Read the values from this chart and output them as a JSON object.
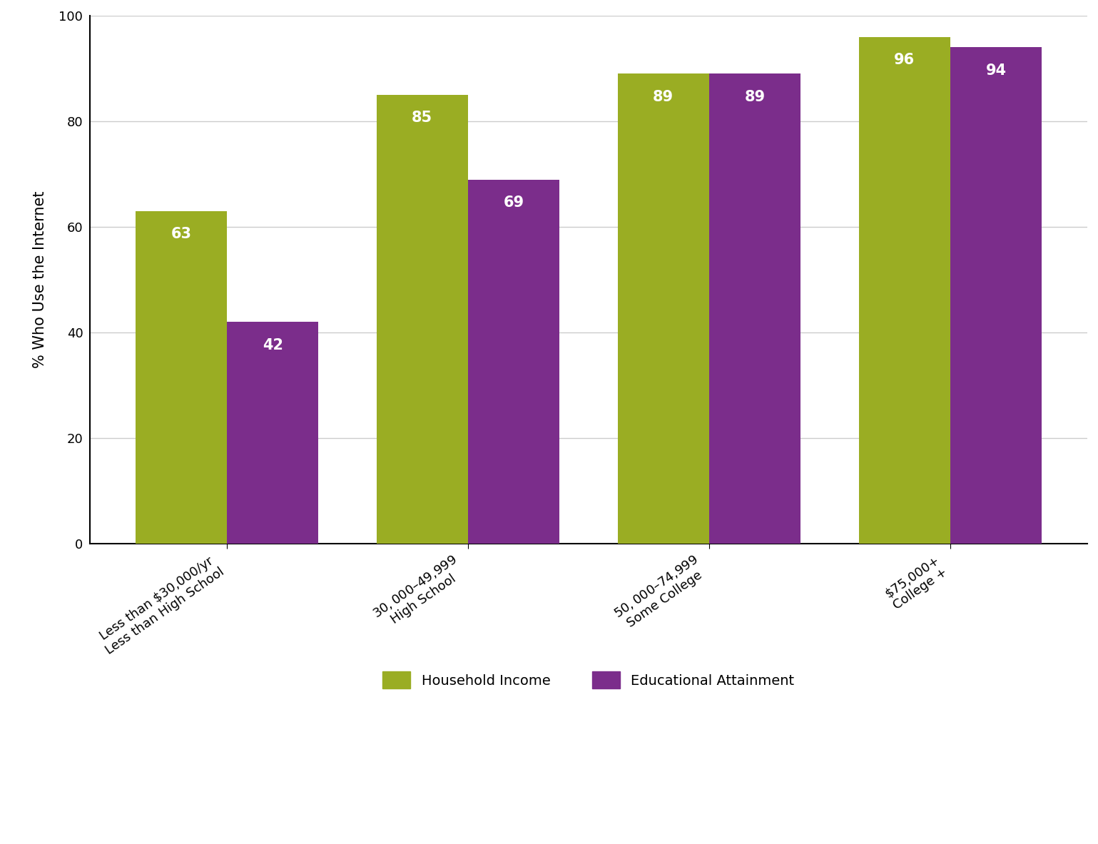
{
  "categories": [
    "Less than $30,000/yr\nLess than High School",
    "$30,000 – $49,999\nHigh School",
    "$50,000 – $74,999\nSome College",
    "$75,000+\nCollege +"
  ],
  "income_values": [
    63,
    85,
    89,
    96
  ],
  "education_values": [
    42,
    69,
    89,
    94
  ],
  "income_color": "#9aad23",
  "education_color": "#7b2d8b",
  "ylabel": "% Who Use the Internet",
  "ylim": [
    0,
    100
  ],
  "yticks": [
    0,
    20,
    40,
    60,
    80,
    100
  ],
  "legend_income": "Household Income",
  "legend_education": "Educational Attainment",
  "bar_width": 0.38,
  "label_fontsize": 15,
  "tick_fontsize": 13,
  "ylabel_fontsize": 15,
  "legend_fontsize": 14,
  "background_color": "#ffffff",
  "grid_color": "#cccccc",
  "spine_color": "#000000"
}
